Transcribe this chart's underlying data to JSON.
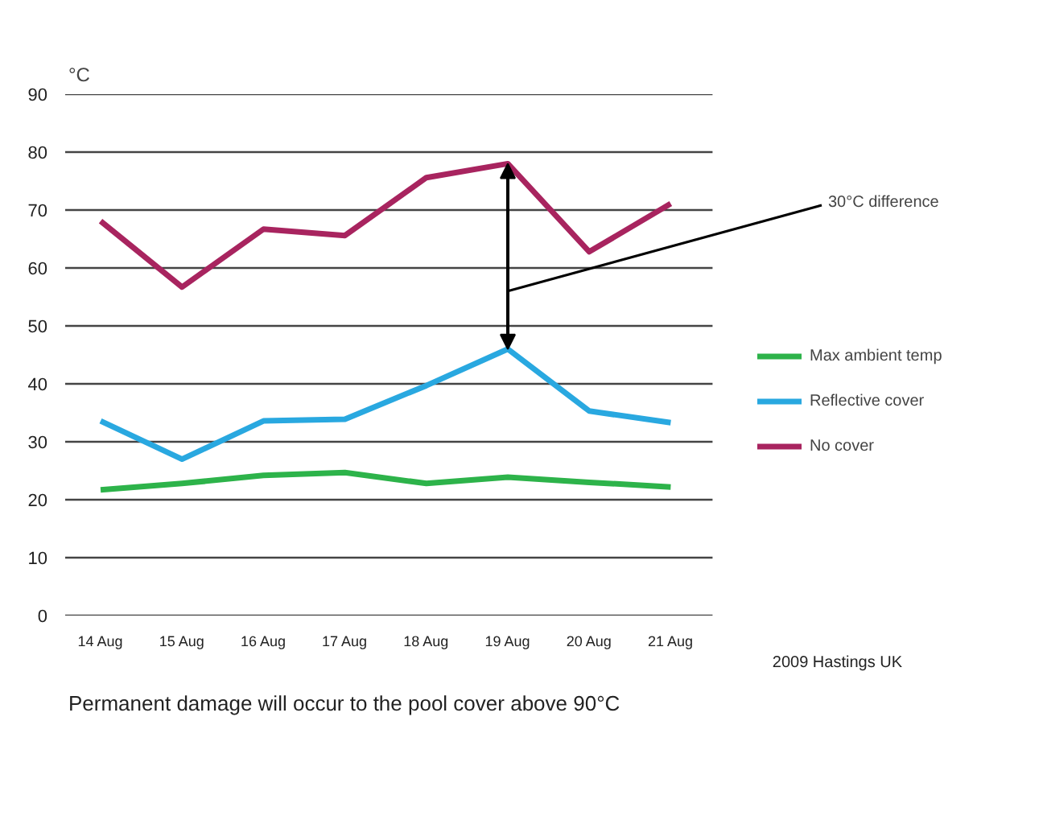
{
  "chart_data": {
    "type": "line",
    "ylabel": "°C",
    "categories": [
      "14 Aug",
      "15 Aug",
      "16 Aug",
      "17 Aug",
      "18 Aug",
      "19 Aug",
      "20 Aug",
      "21 Aug"
    ],
    "series": [
      {
        "name": "Max ambient temp",
        "color": "#2db34a",
        "values": [
          21.7,
          22.8,
          24.2,
          24.7,
          22.8,
          23.9,
          23.0,
          22.2
        ]
      },
      {
        "name": "Reflective cover",
        "color": "#29a8e0",
        "values": [
          33.6,
          27.0,
          33.6,
          33.9,
          39.7,
          46.0,
          35.3,
          33.3
        ]
      },
      {
        "name": "No cover",
        "color": "#a8245f",
        "values": [
          68.1,
          56.7,
          66.7,
          65.6,
          75.6,
          78.0,
          62.8,
          71.1
        ]
      }
    ],
    "ylim": [
      0,
      90
    ],
    "yticks": [
      0,
      10,
      20,
      30,
      40,
      50,
      60,
      70,
      80,
      90
    ],
    "grid": "y",
    "legend": "right",
    "marker": "none",
    "line_style": "solid",
    "annotations": [
      "30°C difference",
      "2009 Hastings UK",
      "Permanent damage will occur to the pool cover above 90°C"
    ]
  }
}
